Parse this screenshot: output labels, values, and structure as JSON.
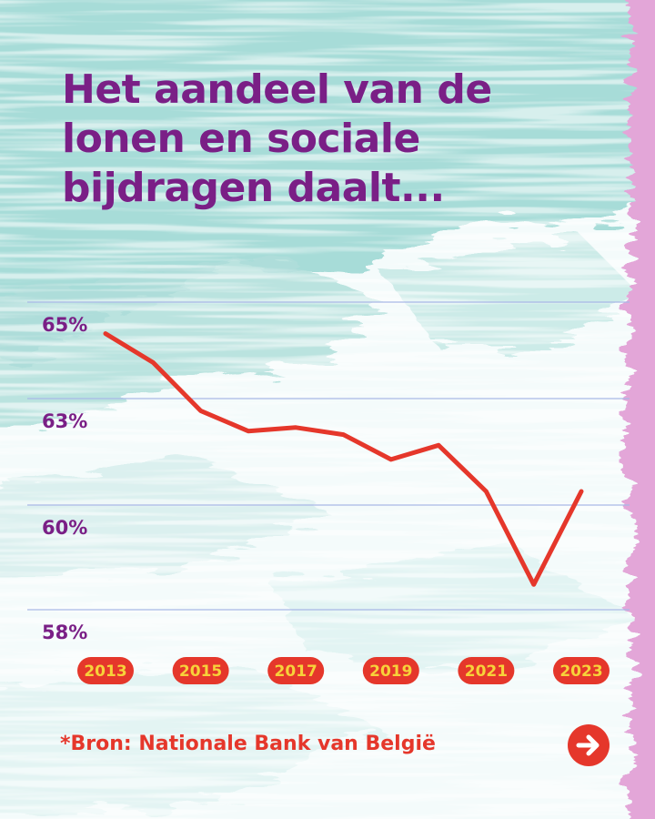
{
  "title_lines": [
    "Het aandeel van de",
    "lonen en sociale",
    "bijdragen daalt..."
  ],
  "source": "*Bron: Nationale Bank van België",
  "next_icon": "arrow-right-icon",
  "colors": {
    "title": "#7a1f86",
    "line": "#e5372b",
    "tick_pill": "#e5372b",
    "tick_text": "#f7d23a",
    "gridline": "#a9b8e6",
    "bg_teal": "#9fd8d4",
    "bg_pink": "#e3a6d8"
  },
  "chart_data": {
    "type": "line",
    "title": "",
    "xlabel": "",
    "ylabel": "",
    "y_ticks": [
      {
        "value": 65,
        "label": "65%"
      },
      {
        "value": 63,
        "label": "63%"
      },
      {
        "value": 60,
        "label": "60%"
      },
      {
        "value": 58,
        "label": "58%"
      }
    ],
    "x_ticks": [
      "2013",
      "2015",
      "2017",
      "2019",
      "2021",
      "2023"
    ],
    "grid": true,
    "legend": "none",
    "series": [
      {
        "x": [
          2013,
          2014,
          2015,
          2016,
          2017,
          2018,
          2019,
          2020,
          2021,
          2022,
          2023
        ],
        "values": [
          64.8,
          64.2,
          63.2,
          62.7,
          62.8,
          62.6,
          61.9,
          62.3,
          61.0,
          58.9,
          61.0
        ]
      }
    ]
  }
}
